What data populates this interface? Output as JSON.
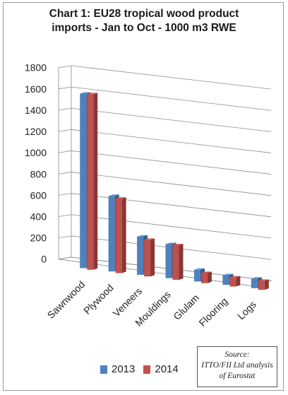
{
  "chart_data": {
    "type": "bar",
    "title_lines": [
      "Chart 1: EU28 tropical wood product",
      "imports - Jan to Oct - 1000 m3 RWE"
    ],
    "categories": [
      "Sawnwood",
      "Plywood",
      "Veneers",
      "Mouldings",
      "Glulam",
      "Flooring",
      "Logs"
    ],
    "series": [
      {
        "name": "2013",
        "values": [
          1640,
          710,
          360,
          320,
          110,
          90,
          90
        ],
        "color": "#4f81bd"
      },
      {
        "name": "2014",
        "values": [
          1650,
          700,
          345,
          325,
          95,
          85,
          85
        ],
        "color": "#c0504d"
      }
    ],
    "ylim": [
      0,
      1800
    ],
    "yticks": [
      "0",
      "200",
      "400",
      "600",
      "800",
      "1000",
      "1200",
      "1400",
      "1600",
      "1800"
    ],
    "grid": true,
    "legend": "bottom"
  },
  "source": {
    "lines": [
      "Source:",
      "ITTO/FII Ltd analysis",
      "of Eurostat"
    ]
  }
}
